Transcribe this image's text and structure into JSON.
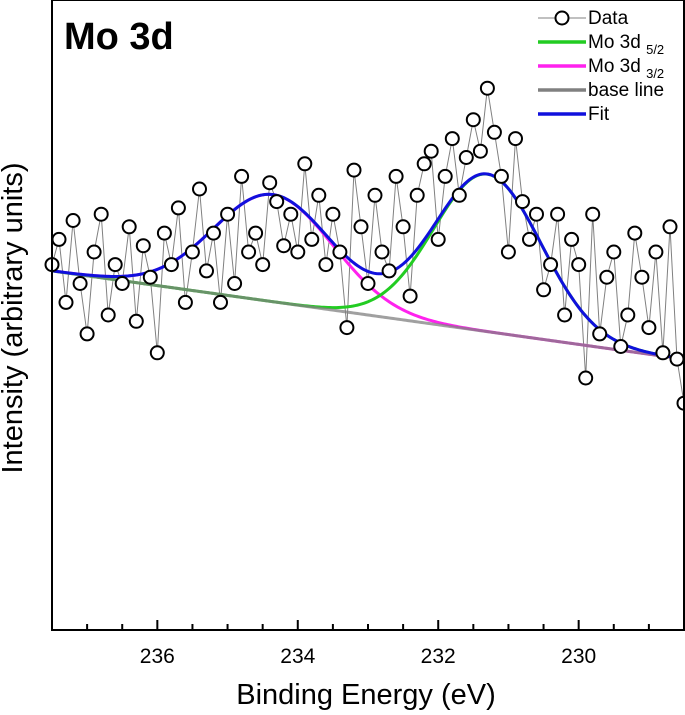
{
  "chart_data": {
    "type": "line",
    "title": "Mo 3d",
    "xlabel": "Binding Energy (eV)",
    "ylabel": "Intensity (arbitrary units)",
    "x_axis_reversed": true,
    "xlim": [
      237.5,
      228.5
    ],
    "ylim": [
      0,
      100
    ],
    "x_ticks": [
      236,
      234,
      232,
      230
    ],
    "y_ticks_visible": false,
    "colors": {
      "data": "#000000",
      "data_line": "#808080",
      "mo5": "#22cc22",
      "mo3": "#ff22ee",
      "base": "#808080",
      "fit": "#1010dd"
    },
    "legend": {
      "position": "top-right",
      "entries": [
        {
          "key": "data",
          "label": "Data",
          "sub": ""
        },
        {
          "key": "mo5",
          "label": "Mo 3d ",
          "sub": "5/2"
        },
        {
          "key": "mo3",
          "label": "Mo 3d ",
          "sub": "3/2"
        },
        {
          "key": "base",
          "label": "base line",
          "sub": ""
        },
        {
          "key": "fit",
          "label": "Fit",
          "sub": ""
        }
      ]
    },
    "model": {
      "baseline": {
        "x1": 237.5,
        "y1": 57.0,
        "x2": 228.5,
        "y2": 43.0
      },
      "peak_mo3d_5_2": {
        "center": 231.3,
        "amplitude": 25.0,
        "fwhm": 1.8
      },
      "peak_mo3d_3_2": {
        "center": 234.35,
        "amplitude": 17.0,
        "fwhm": 2.0
      }
    },
    "series": [
      {
        "name": "Data",
        "style": "line+open-circle",
        "x": [
          237.5,
          237.4,
          237.3,
          237.2,
          237.1,
          237.0,
          236.9,
          236.8,
          236.7,
          236.6,
          236.5,
          236.4,
          236.3,
          236.2,
          236.1,
          236.0,
          235.9,
          235.8,
          235.7,
          235.6,
          235.5,
          235.4,
          235.3,
          235.2,
          235.1,
          235.0,
          234.9,
          234.8,
          234.7,
          234.6,
          234.5,
          234.4,
          234.3,
          234.2,
          234.1,
          234.0,
          233.9,
          233.8,
          233.7,
          233.6,
          233.5,
          233.4,
          233.3,
          233.2,
          233.1,
          233.0,
          232.9,
          232.8,
          232.7,
          232.6,
          232.5,
          232.4,
          232.3,
          232.2,
          232.1,
          232.0,
          231.9,
          231.8,
          231.7,
          231.6,
          231.5,
          231.4,
          231.3,
          231.2,
          231.1,
          231.0,
          230.9,
          230.8,
          230.7,
          230.6,
          230.5,
          230.4,
          230.3,
          230.2,
          230.1,
          230.0,
          229.9,
          229.8,
          229.7,
          229.6,
          229.5,
          229.4,
          229.3,
          229.2,
          229.1,
          229.0,
          228.9,
          228.8,
          228.7,
          228.6,
          228.5
        ],
        "y": [
          58,
          62,
          52,
          65,
          55,
          47,
          60,
          66,
          50,
          58,
          55,
          64,
          49,
          61,
          56,
          44,
          63,
          58,
          67,
          52,
          60,
          70,
          57,
          63,
          52,
          66,
          55,
          72,
          60,
          63,
          58,
          71,
          68,
          61,
          66,
          60,
          74,
          62,
          69,
          58,
          66,
          60,
          48,
          73,
          64,
          55,
          69,
          60,
          57,
          72,
          64,
          53,
          69,
          74,
          76,
          62,
          72,
          78,
          69,
          75,
          81,
          76,
          86,
          79,
          72,
          60,
          78,
          68,
          62,
          66,
          54,
          58,
          66,
          50,
          62,
          58,
          40,
          66,
          47,
          56,
          60,
          45,
          50,
          63,
          56,
          48,
          60,
          44,
          64,
          43,
          36
        ]
      },
      {
        "name": "Mo 3d 5/2",
        "style": "line"
      },
      {
        "name": "Mo 3d 3/2",
        "style": "line"
      },
      {
        "name": "base line",
        "style": "line"
      },
      {
        "name": "Fit",
        "style": "line"
      }
    ]
  }
}
